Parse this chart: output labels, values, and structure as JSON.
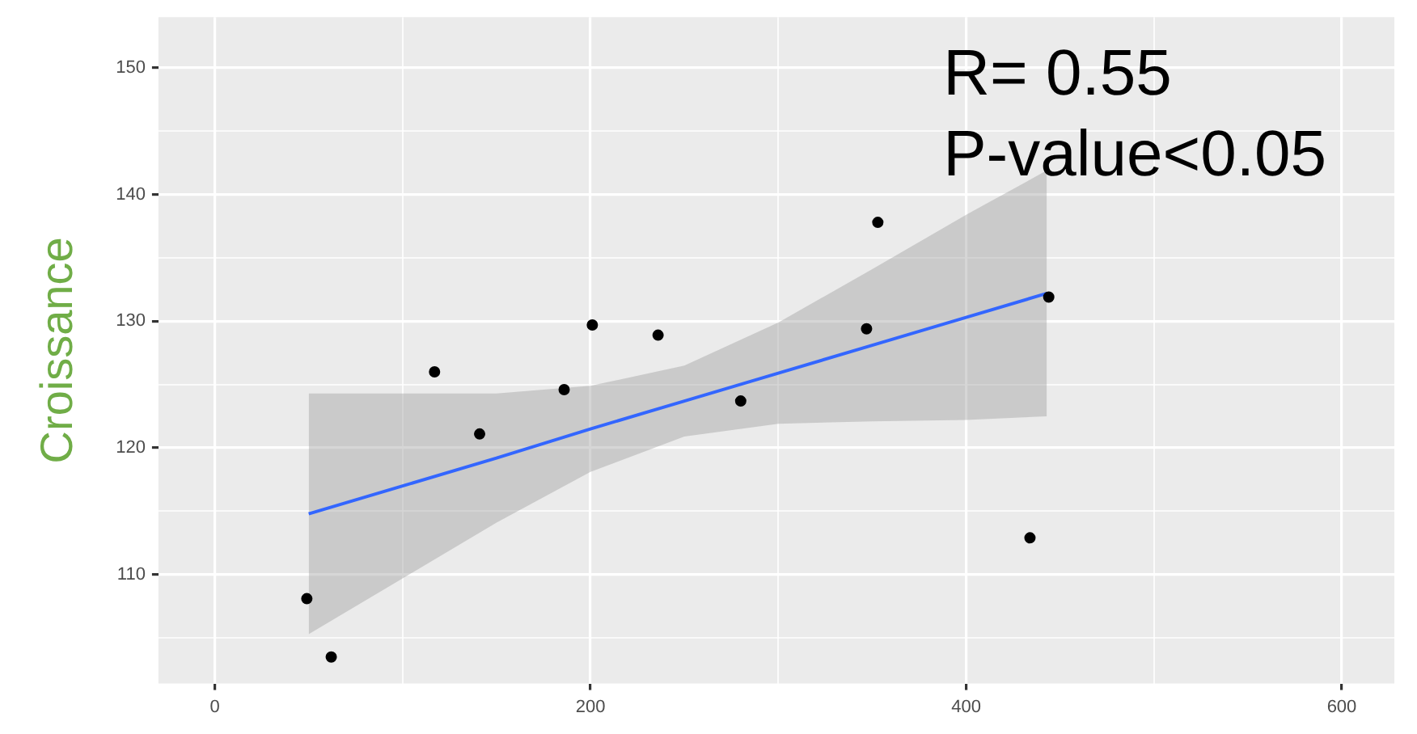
{
  "chart_data": {
    "type": "scatter",
    "ylabel": "Croissance",
    "annotations": [
      "R= 0.55",
      "P-value<0.05"
    ],
    "xlim": [
      -30,
      628
    ],
    "ylim": [
      101.4,
      154
    ],
    "xticks": [
      0,
      {
        "value": 100,
        "label": null
      },
      200,
      {
        "value": 300,
        "label": null
      },
      400,
      {
        "value": 500,
        "label": null
      },
      600
    ],
    "yticks": [
      {
        "value": 105,
        "label": null
      },
      110,
      {
        "value": 115,
        "label": null
      },
      120,
      {
        "value": 125,
        "label": null
      },
      130,
      {
        "value": 135,
        "label": null
      },
      140,
      {
        "value": 145,
        "label": null
      },
      150
    ],
    "grid": true,
    "legend": false,
    "marker": "circle",
    "series": [
      {
        "type": "line",
        "color": "#3366ff",
        "marker": "none",
        "x": [
          50,
          100,
          150,
          200,
          250,
          300,
          350,
          400,
          443
        ],
        "values": [
          114.8,
          117.0,
          119.2,
          121.5,
          123.7,
          125.9,
          128.1,
          130.3,
          132.2
        ],
        "lower": [
          105.3,
          109.7,
          114.1,
          118.1,
          120.9,
          121.9,
          122.1,
          122.2,
          122.5
        ],
        "upper": [
          124.3,
          124.3,
          124.3,
          124.9,
          126.5,
          129.9,
          134.1,
          138.4,
          141.9
        ]
      },
      {
        "type": "scatter",
        "color": "#000000",
        "x": [
          49,
          62,
          117,
          141,
          186,
          201,
          236,
          280,
          347,
          353,
          434,
          444
        ],
        "values": [
          108.1,
          103.5,
          126.0,
          121.1,
          124.6,
          129.7,
          128.9,
          123.7,
          129.4,
          137.8,
          112.9,
          131.9
        ]
      }
    ]
  }
}
